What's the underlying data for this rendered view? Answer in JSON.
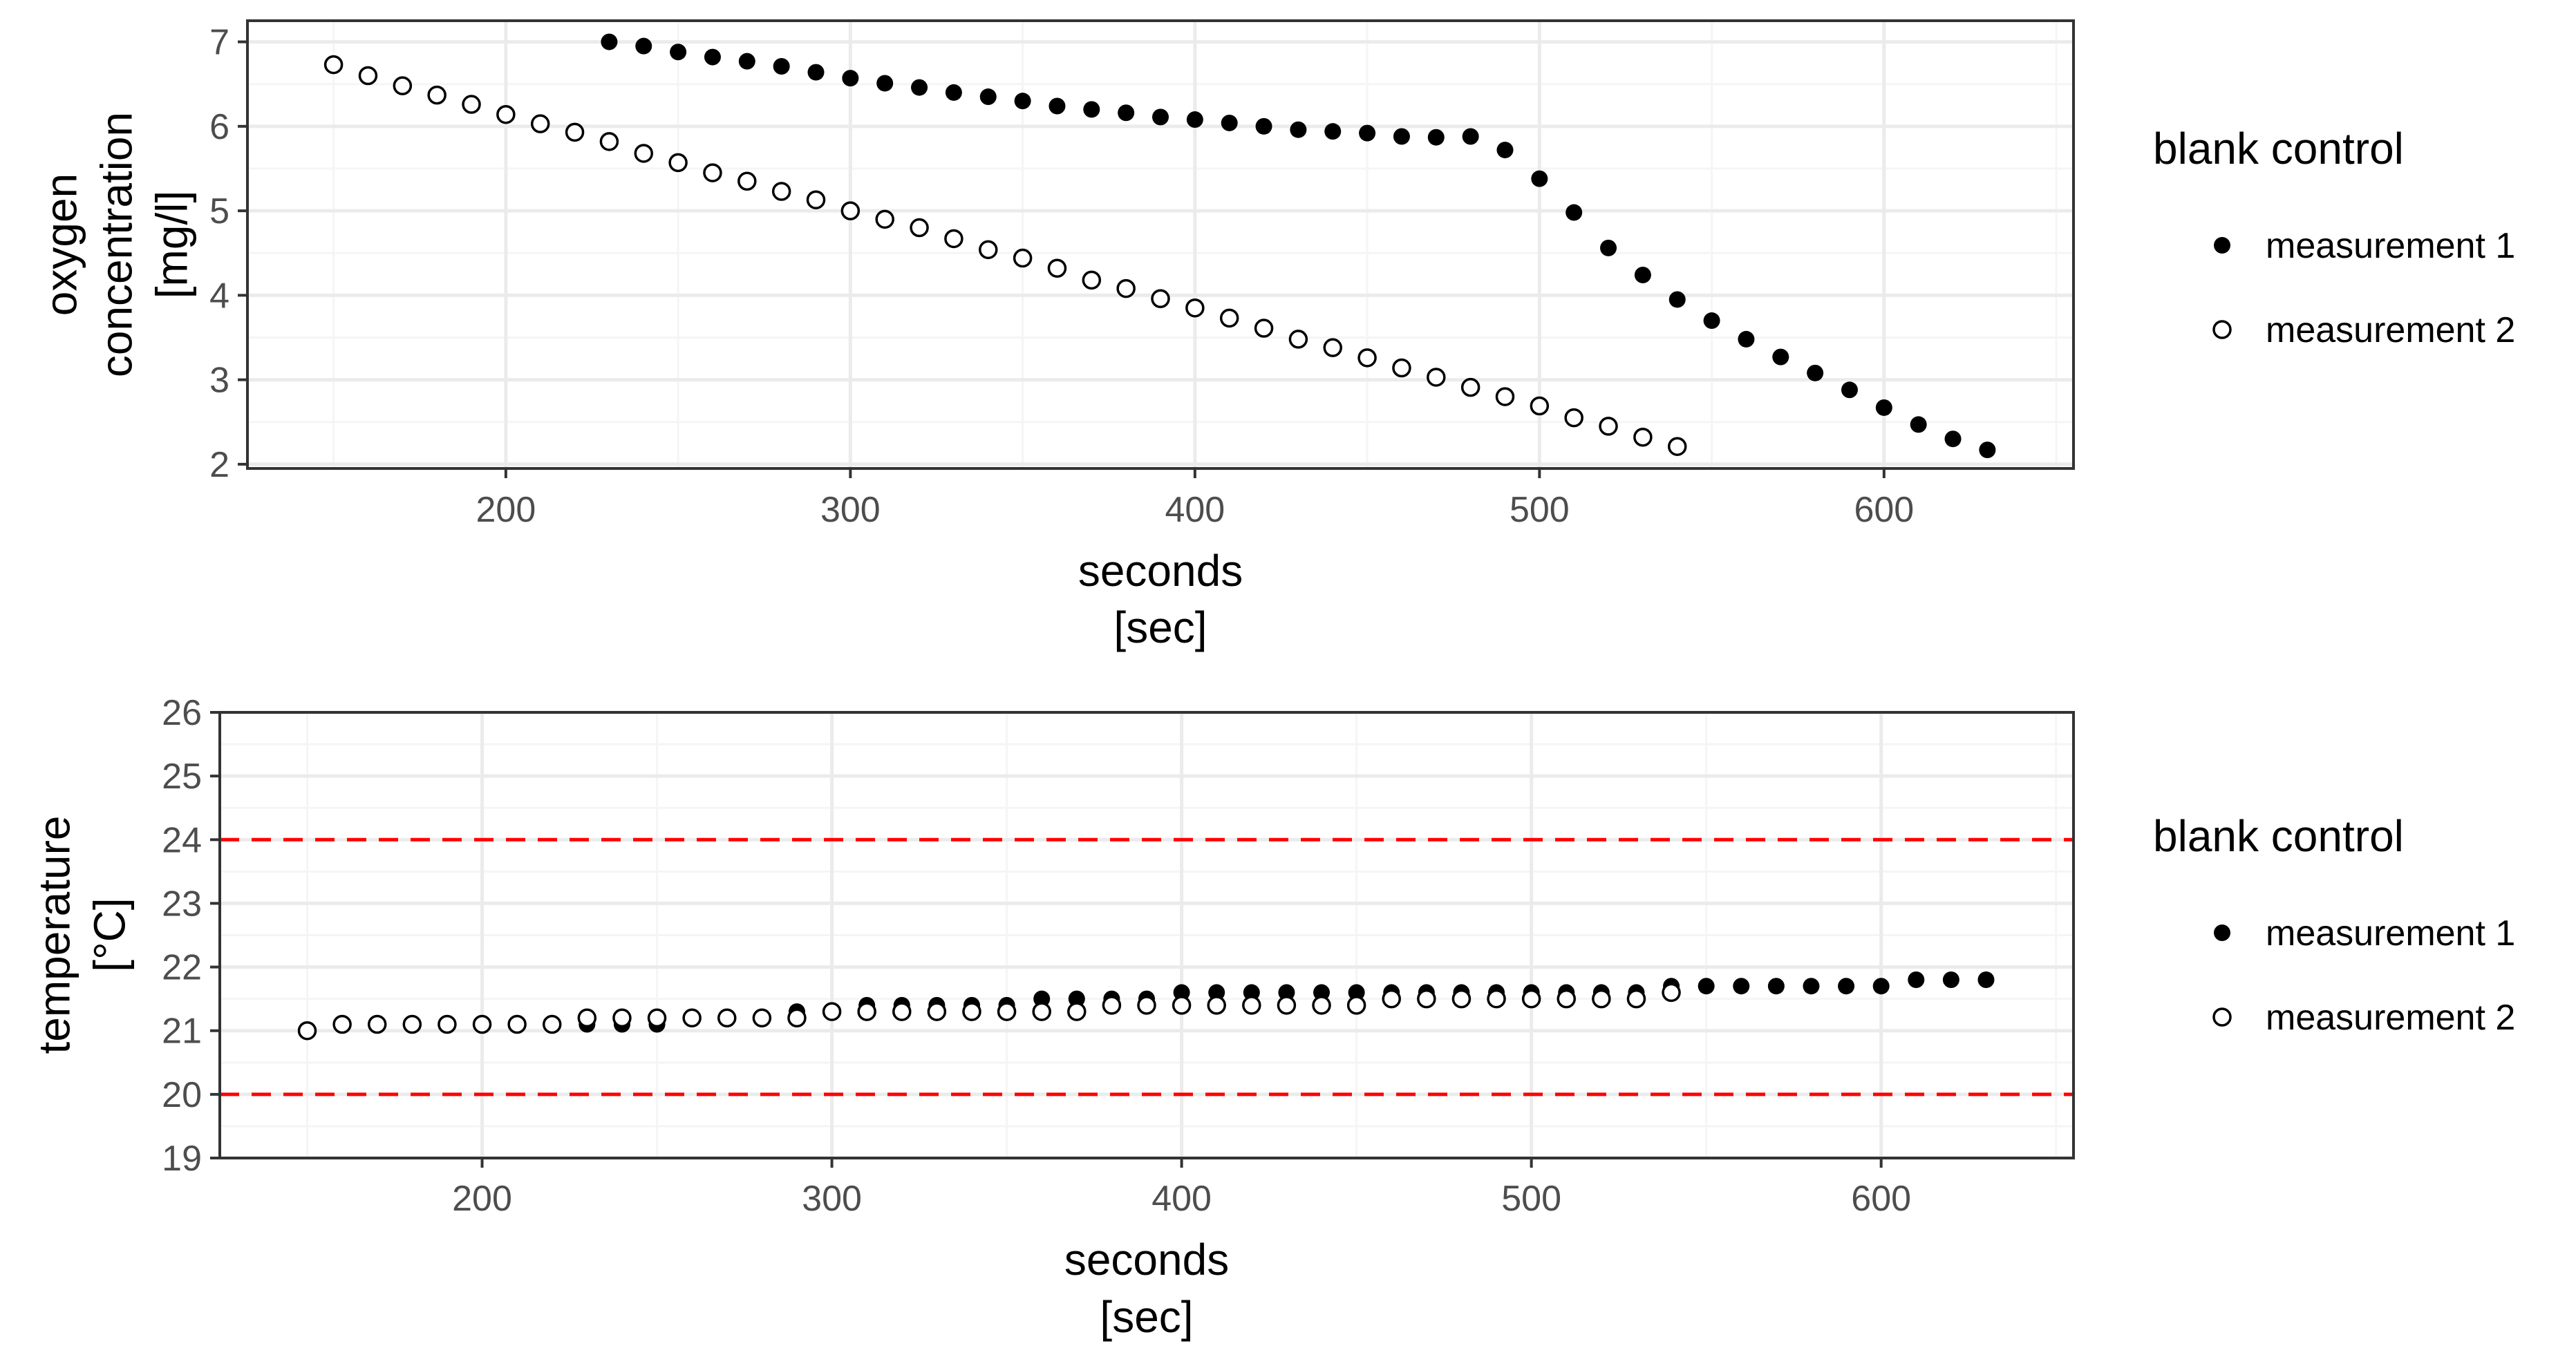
{
  "colors": {
    "panel_border": "#333333",
    "grid_major": "#ebebeb",
    "grid_minor": "#f5f5f5",
    "tick_text": "#4d4d4d",
    "reference_line": "#ff0000",
    "point_filled": "#000000",
    "point_open_fill": "#ffffff"
  },
  "chart_data": [
    {
      "type": "scatter",
      "title": "",
      "xlabel": "seconds\n[sec]",
      "ylabel": "oxygen\nconcentration\n[mg/l]",
      "xlim": [
        125,
        655
      ],
      "ylim": [
        1.95,
        7.25
      ],
      "xticks": [
        200,
        300,
        400,
        500,
        600
      ],
      "xtick_labels": [
        "200",
        "300",
        "400",
        "500",
        "600"
      ],
      "yticks": [
        2,
        3,
        4,
        5,
        6,
        7
      ],
      "ytick_labels": [
        "2",
        "3",
        "4",
        "5",
        "6",
        "7"
      ],
      "grid": true,
      "legend": {
        "title": "blank control",
        "placement": "right",
        "entries": [
          {
            "label": "measurement 1",
            "marker": "filled-circle"
          },
          {
            "label": "measurement 2",
            "marker": "open-circle"
          }
        ]
      },
      "series": [
        {
          "name": "measurement 1",
          "marker": "filled-circle",
          "x": [
            230,
            240,
            250,
            260,
            270,
            280,
            290,
            300,
            310,
            320,
            330,
            340,
            350,
            360,
            370,
            380,
            390,
            400,
            410,
            420,
            430,
            440,
            450,
            460,
            470,
            480,
            490,
            500,
            510,
            520,
            530,
            540,
            550,
            560,
            570,
            580,
            590,
            600,
            610,
            620,
            630
          ],
          "y": [
            7.0,
            6.95,
            6.88,
            6.82,
            6.77,
            6.71,
            6.64,
            6.57,
            6.51,
            6.46,
            6.4,
            6.35,
            6.3,
            6.24,
            6.2,
            6.16,
            6.11,
            6.08,
            6.04,
            6.0,
            5.96,
            5.94,
            5.92,
            5.88,
            5.87,
            5.88,
            5.72,
            5.38,
            4.98,
            4.56,
            4.24,
            3.95,
            3.7,
            3.48,
            3.27,
            3.08,
            2.88,
            2.67,
            2.47,
            2.3,
            2.17
          ]
        },
        {
          "name": "measurement 2",
          "marker": "open-circle",
          "x": [
            150,
            160,
            170,
            180,
            190,
            200,
            210,
            220,
            230,
            240,
            250,
            260,
            270,
            280,
            290,
            300,
            310,
            320,
            330,
            340,
            350,
            360,
            370,
            380,
            390,
            400,
            410,
            420,
            430,
            440,
            450,
            460,
            470,
            480,
            490,
            500,
            510,
            520,
            530,
            540
          ],
          "y": [
            6.73,
            6.6,
            6.48,
            6.37,
            6.26,
            6.14,
            6.03,
            5.93,
            5.82,
            5.68,
            5.57,
            5.45,
            5.35,
            5.23,
            5.13,
            5.0,
            4.9,
            4.8,
            4.67,
            4.54,
            4.44,
            4.32,
            4.18,
            4.08,
            3.96,
            3.85,
            3.73,
            3.61,
            3.48,
            3.38,
            3.26,
            3.14,
            3.03,
            2.91,
            2.8,
            2.69,
            2.55,
            2.45,
            2.32,
            2.21
          ]
        }
      ]
    },
    {
      "type": "scatter",
      "title": "",
      "xlabel": "seconds\n[sec]",
      "ylabel": "temperature\n[°C]",
      "xlim": [
        125,
        655
      ],
      "ylim": [
        19,
        26
      ],
      "xticks": [
        200,
        300,
        400,
        500,
        600
      ],
      "xtick_labels": [
        "200",
        "300",
        "400",
        "500",
        "600"
      ],
      "yticks": [
        19,
        20,
        21,
        22,
        23,
        24,
        25,
        26
      ],
      "ytick_labels": [
        "19",
        "20",
        "21",
        "22",
        "23",
        "24",
        "25",
        "26"
      ],
      "grid": true,
      "reference_lines": [
        {
          "axis": "y",
          "value": 24,
          "style": "dashed",
          "color": "#ff0000"
        },
        {
          "axis": "y",
          "value": 20,
          "style": "dashed",
          "color": "#ff0000"
        }
      ],
      "legend": {
        "title": "blank control",
        "placement": "right",
        "entries": [
          {
            "label": "measurement 1",
            "marker": "filled-circle"
          },
          {
            "label": "measurement 2",
            "marker": "open-circle"
          }
        ]
      },
      "series": [
        {
          "name": "measurement 1",
          "marker": "filled-circle",
          "x": [
            230,
            240,
            250,
            260,
            270,
            280,
            290,
            300,
            310,
            320,
            330,
            340,
            350,
            360,
            370,
            380,
            390,
            400,
            410,
            420,
            430,
            440,
            450,
            460,
            470,
            480,
            490,
            500,
            510,
            520,
            530,
            540,
            550,
            560,
            570,
            580,
            590,
            600,
            610,
            620,
            630
          ],
          "y": [
            21.1,
            21.1,
            21.1,
            21.2,
            21.2,
            21.2,
            21.3,
            21.3,
            21.4,
            21.4,
            21.4,
            21.4,
            21.4,
            21.5,
            21.5,
            21.5,
            21.5,
            21.6,
            21.6,
            21.6,
            21.6,
            21.6,
            21.6,
            21.6,
            21.6,
            21.6,
            21.6,
            21.6,
            21.6,
            21.6,
            21.6,
            21.7,
            21.7,
            21.7,
            21.7,
            21.7,
            21.7,
            21.7,
            21.8,
            21.8,
            21.8
          ]
        },
        {
          "name": "measurement 2",
          "marker": "open-circle",
          "x": [
            150,
            160,
            170,
            180,
            190,
            200,
            210,
            220,
            230,
            240,
            250,
            260,
            270,
            280,
            290,
            300,
            310,
            320,
            330,
            340,
            350,
            360,
            370,
            380,
            390,
            400,
            410,
            420,
            430,
            440,
            450,
            460,
            470,
            480,
            490,
            500,
            510,
            520,
            530,
            540
          ],
          "y": [
            21.0,
            21.1,
            21.1,
            21.1,
            21.1,
            21.1,
            21.1,
            21.1,
            21.2,
            21.2,
            21.2,
            21.2,
            21.2,
            21.2,
            21.2,
            21.3,
            21.3,
            21.3,
            21.3,
            21.3,
            21.3,
            21.3,
            21.3,
            21.4,
            21.4,
            21.4,
            21.4,
            21.4,
            21.4,
            21.4,
            21.4,
            21.5,
            21.5,
            21.5,
            21.5,
            21.5,
            21.5,
            21.5,
            21.5,
            21.6
          ]
        }
      ]
    }
  ]
}
